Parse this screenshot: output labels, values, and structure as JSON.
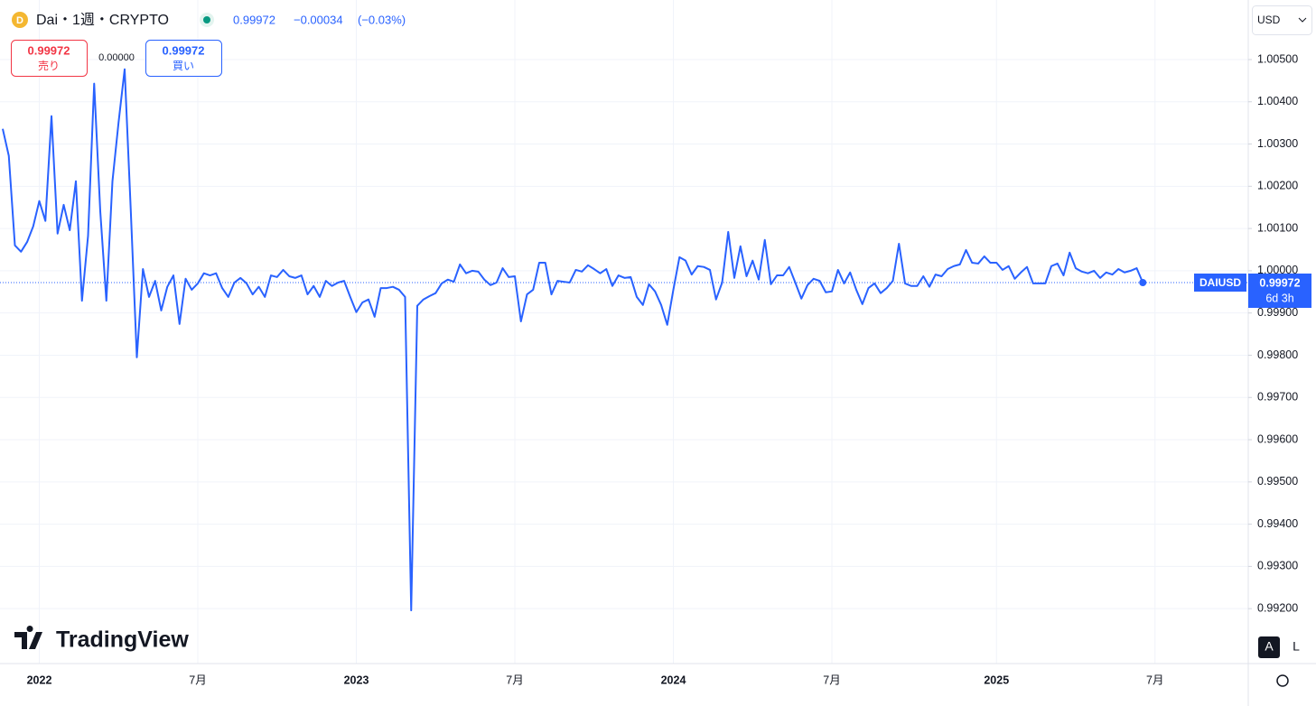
{
  "header": {
    "symbol": "Dai・1週・CRYPTO",
    "price": "0.99972",
    "change": "−0.00034",
    "change_pct": "(−0.03%)",
    "sell_price": "0.99972",
    "sell_label": "売り",
    "spread": "0.00000",
    "buy_price": "0.99972",
    "buy_label": "買い",
    "currency": "USD",
    "logo": "TradingView",
    "btn_auto": "A",
    "btn_log": "L",
    "last_symbol": "DAIUSD",
    "last_price": "0.99972",
    "countdown": "6d 3h"
  },
  "chart_data": {
    "type": "line",
    "last_value": 0.99972,
    "categories": [
      null,
      null,
      null,
      null,
      null,
      null,
      "2022",
      null,
      null,
      null,
      null,
      null,
      null,
      null,
      null,
      null,
      null,
      null,
      null,
      null,
      null,
      null,
      null,
      null,
      null,
      null,
      null,
      null,
      null,
      null,
      null,
      null,
      "7月",
      null,
      null,
      null,
      null,
      null,
      null,
      null,
      null,
      null,
      null,
      null,
      null,
      null,
      null,
      null,
      null,
      null,
      null,
      null,
      null,
      null,
      null,
      null,
      null,
      null,
      "2023",
      null,
      null,
      null,
      null,
      null,
      null,
      null,
      null,
      null,
      null,
      null,
      null,
      null,
      null,
      null,
      null,
      null,
      null,
      null,
      null,
      null,
      null,
      null,
      null,
      null,
      "7月",
      null,
      null,
      null,
      null,
      null,
      null,
      null,
      null,
      null,
      null,
      null,
      null,
      null,
      null,
      null,
      null,
      null,
      null,
      null,
      null,
      null,
      null,
      null,
      null,
      null,
      "2024",
      null,
      null,
      null,
      null,
      null,
      null,
      null,
      null,
      null,
      null,
      null,
      null,
      null,
      null,
      null,
      null,
      null,
      null,
      null,
      null,
      null,
      null,
      null,
      null,
      null,
      "7月",
      null,
      null,
      null,
      null,
      null,
      null,
      null,
      null,
      null,
      null,
      null,
      null,
      null,
      null,
      null,
      null,
      null,
      null,
      null,
      null,
      null,
      null,
      null,
      null,
      null,
      null,
      "2025",
      null,
      null,
      null,
      null,
      null,
      null,
      null,
      null,
      null,
      null,
      null,
      null,
      null,
      null,
      null,
      null,
      null,
      null,
      null,
      null,
      null,
      null,
      null,
      null,
      null,
      "7月"
    ],
    "series": [
      {
        "name": "DAIUSD",
        "color": "#2962ff",
        "values": [
          1.00336,
          1.00272,
          1.0006,
          1.00045,
          1.00068,
          1.00105,
          1.00165,
          1.00118,
          1.00366,
          1.00088,
          1.00156,
          1.00096,
          1.00212,
          0.99929,
          1.00083,
          1.00443,
          1.00141,
          0.99929,
          1.00212,
          1.00351,
          1.00477,
          1.00145,
          0.99795,
          1.00004,
          0.99938,
          0.99976,
          0.99906,
          0.99962,
          0.99989,
          0.99874,
          0.99981,
          0.99955,
          0.9997,
          0.99994,
          0.99989,
          0.99994,
          0.99959,
          0.99938,
          0.99972,
          0.99983,
          0.9997,
          0.99944,
          0.99962,
          0.99938,
          0.99989,
          0.99985,
          1.00002,
          0.99987,
          0.99983,
          0.99989,
          0.99944,
          0.99964,
          0.99938,
          0.99976,
          0.99964,
          0.99972,
          0.99976,
          0.99938,
          0.99902,
          0.99925,
          0.99932,
          0.99891,
          0.99959,
          0.99959,
          0.99962,
          0.99955,
          0.99938,
          0.99196,
          0.99917,
          0.99932,
          0.9994,
          0.99947,
          0.9997,
          0.99979,
          0.99974,
          1.00015,
          0.99994,
          1.0,
          0.99998,
          0.99979,
          0.99966,
          0.99972,
          1.00006,
          0.99985,
          0.99987,
          0.9988,
          0.99944,
          0.99955,
          1.00019,
          1.00019,
          0.99944,
          0.99976,
          0.99974,
          0.99972,
          1.00002,
          0.99998,
          1.00013,
          1.00004,
          0.99994,
          1.00004,
          0.99964,
          0.99989,
          0.99983,
          0.99985,
          0.99938,
          0.99919,
          0.99968,
          0.99951,
          0.99919,
          0.99872,
          0.99955,
          1.00032,
          1.00024,
          0.99991,
          1.00011,
          1.00009,
          1.00002,
          0.99932,
          0.99972,
          1.00092,
          0.99983,
          1.00058,
          0.99987,
          1.00024,
          0.99979,
          1.00073,
          0.99968,
          0.99989,
          0.99989,
          1.00009,
          0.99972,
          0.99934,
          0.99966,
          0.99981,
          0.99976,
          0.99949,
          0.99951,
          1.00002,
          0.9997,
          0.99996,
          0.99955,
          0.99921,
          0.99959,
          0.9997,
          0.99947,
          0.99959,
          0.99976,
          1.00064,
          0.9997,
          0.99964,
          0.99964,
          0.99987,
          0.99962,
          0.99991,
          0.99987,
          1.00004,
          1.00011,
          1.00015,
          1.00049,
          1.00019,
          1.00017,
          1.00034,
          1.00019,
          1.00019,
          1.00002,
          1.00011,
          0.99981,
          0.99996,
          1.00009,
          0.9997,
          0.9997,
          0.9997,
          1.00011,
          1.00017,
          0.99989,
          1.00043,
          1.00006,
          0.99998,
          0.99994,
          1.0,
          0.99983,
          0.99996,
          0.99991,
          1.00004,
          0.99996,
          1.0,
          1.00006,
          0.99972,
          null,
          null
        ]
      }
    ],
    "ylim": [
      0.9907,
      1.00641
    ],
    "yticks": [
      {
        "value": 0.992,
        "label": "0.99200"
      },
      {
        "value": 0.993,
        "label": "0.99300"
      },
      {
        "value": 0.994,
        "label": "0.99400"
      },
      {
        "value": 0.995,
        "label": "0.99500"
      },
      {
        "value": 0.996,
        "label": "0.99600"
      },
      {
        "value": 0.997,
        "label": "0.99700"
      },
      {
        "value": 0.998,
        "label": "0.99800"
      },
      {
        "value": 0.999,
        "label": "0.99900"
      },
      {
        "value": 1.0,
        "label": "1.00000"
      },
      {
        "value": 1.001,
        "label": "1.00100"
      },
      {
        "value": 1.002,
        "label": "1.00200"
      },
      {
        "value": 1.003,
        "label": "1.00300"
      },
      {
        "value": 1.004,
        "label": "1.00400"
      },
      {
        "value": 1.005,
        "label": "1.00500"
      }
    ],
    "grid": true
  }
}
